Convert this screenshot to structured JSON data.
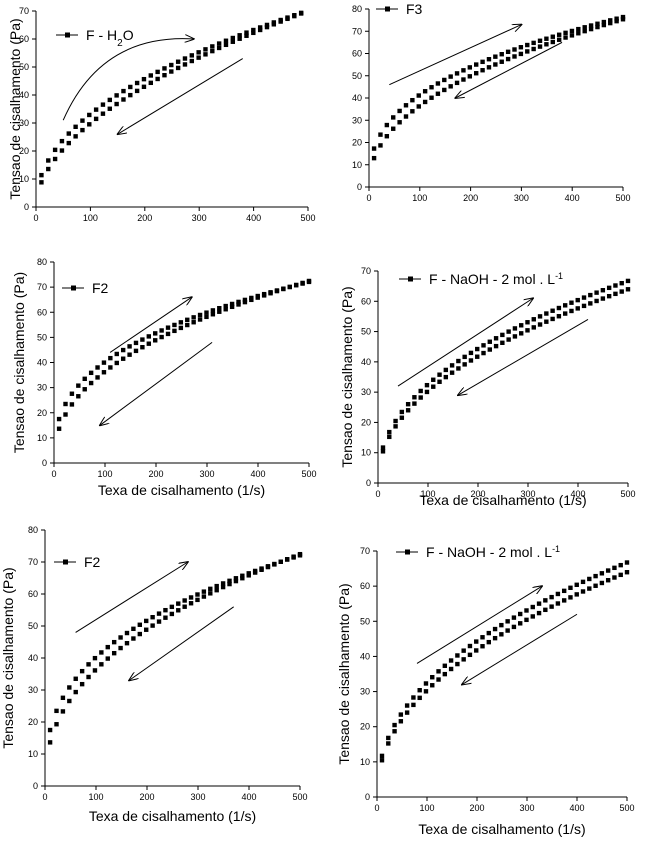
{
  "chart_data": [
    {
      "type": "scatter",
      "legend": "F - H2O",
      "ylabel": "Tensao de cisalhamento (Pa)",
      "xlabel": "",
      "xlim": [
        0,
        500
      ],
      "ylim": [
        0,
        70
      ],
      "xticks": [
        0,
        100,
        200,
        300,
        400,
        500
      ],
      "yticks": [
        0,
        10,
        20,
        30,
        40,
        50,
        60,
        70
      ],
      "up": {
        "start": 10,
        "end": 500,
        "k": 3.9,
        "p": 0.465
      },
      "down": {
        "start": 500,
        "end": 10,
        "k": 2.6,
        "p": 0.53
      },
      "arrow_up": [
        [
          50,
          31
        ],
        [
          290,
          60
        ]
      ],
      "arrow_down": [
        [
          380,
          53
        ],
        [
          150,
          26
        ]
      ]
    },
    {
      "type": "scatter",
      "legend": "F3",
      "ylabel": "",
      "xlabel": "",
      "xlim": [
        0,
        500
      ],
      "ylim": [
        0,
        80
      ],
      "xticks": [
        0,
        100,
        200,
        300,
        400,
        500
      ],
      "yticks": [
        0,
        10,
        20,
        30,
        40,
        50,
        60,
        70,
        80
      ],
      "up": {
        "start": 10,
        "end": 500,
        "k": 7.2,
        "p": 0.38
      },
      "down": {
        "start": 500,
        "end": 10,
        "k": 4.6,
        "p": 0.45
      },
      "arrow_up": [
        [
          40,
          46
        ],
        [
          300,
          73
        ]
      ],
      "arrow_down": [
        [
          380,
          65
        ],
        [
          170,
          40
        ]
      ]
    },
    {
      "type": "scatter",
      "legend": "F2",
      "ylabel": "Tensao de cisalhamento (Pa)",
      "xlabel": "Texa de cisalhamento (1/s)",
      "xlim": [
        0,
        500
      ],
      "ylim": [
        0,
        80
      ],
      "xticks": [
        0,
        100,
        200,
        300,
        400,
        500
      ],
      "yticks": [
        0,
        10,
        20,
        30,
        40,
        50,
        60,
        70,
        80
      ],
      "up": {
        "start": 10,
        "end": 500,
        "k": 7.6,
        "p": 0.362
      },
      "down": {
        "start": 500,
        "end": 10,
        "k": 5.1,
        "p": 0.427
      },
      "arrow_up": [
        [
          110,
          44
        ],
        [
          270,
          66
        ]
      ],
      "arrow_down": [
        [
          310,
          48
        ],
        [
          90,
          15
        ]
      ]
    },
    {
      "type": "scatter",
      "legend": "F - NaOH - 2 mol . L-1",
      "ylabel": "Tensao de cisalhamento (Pa)",
      "xlabel": "Texa de cisalhamento (1/s)",
      "xlim": [
        0,
        500
      ],
      "ylim": [
        0,
        70
      ],
      "xticks": [
        0,
        100,
        200,
        300,
        400,
        500
      ],
      "yticks": [
        0,
        10,
        20,
        30,
        40,
        50,
        60,
        70
      ],
      "up": {
        "start": 10,
        "end": 500,
        "k": 4.2,
        "p": 0.445
      },
      "down": {
        "start": 500,
        "end": 10,
        "k": 3.6,
        "p": 0.463
      },
      "arrow_up": [
        [
          40,
          32
        ],
        [
          310,
          61
        ]
      ],
      "arrow_down": [
        [
          420,
          54
        ],
        [
          160,
          29
        ]
      ]
    },
    {
      "type": "scatter",
      "legend": "F2",
      "ylabel": "Tensao de cisalhamento (Pa)",
      "xlabel": "Texa de cisalhamento (1/s)",
      "xlim": [
        0,
        500
      ],
      "ylim": [
        0,
        80
      ],
      "xticks": [
        0,
        100,
        200,
        300,
        400,
        500
      ],
      "yticks": [
        0,
        10,
        20,
        30,
        40,
        50,
        60,
        70,
        80
      ],
      "up": {
        "start": 10,
        "end": 500,
        "k": 7.6,
        "p": 0.362
      },
      "down": {
        "start": 500,
        "end": 10,
        "k": 5.1,
        "p": 0.427
      },
      "arrow_up": [
        [
          60,
          48
        ],
        [
          280,
          70
        ]
      ],
      "arrow_down": [
        [
          370,
          56
        ],
        [
          165,
          33
        ]
      ]
    },
    {
      "type": "scatter",
      "legend": "F - NaOH - 2 mol . L-1",
      "ylabel": "Tensao de cisalhamento (Pa)",
      "xlabel": "Texa de cisalhamento (1/s)",
      "xlim": [
        0,
        500
      ],
      "ylim": [
        0,
        70
      ],
      "xticks": [
        0,
        100,
        200,
        300,
        400,
        500
      ],
      "yticks": [
        0,
        10,
        20,
        30,
        40,
        50,
        60,
        70
      ],
      "up": {
        "start": 10,
        "end": 500,
        "k": 4.2,
        "p": 0.445
      },
      "down": {
        "start": 500,
        "end": 10,
        "k": 3.6,
        "p": 0.463
      },
      "arrow_up": [
        [
          80,
          38
        ],
        [
          330,
          60
        ]
      ],
      "arrow_down": [
        [
          400,
          52
        ],
        [
          170,
          32
        ]
      ]
    }
  ]
}
